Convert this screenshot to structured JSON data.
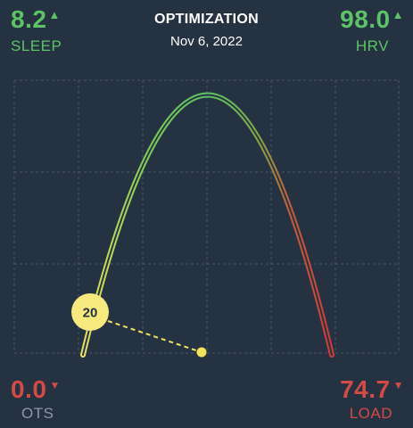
{
  "header": {
    "title": "OPTIMIZATION",
    "date": "Nov 6, 2022"
  },
  "metrics": {
    "sleep": {
      "value": "8.2",
      "label": "SLEEP",
      "trend": "▲",
      "color": "#5cc466"
    },
    "hrv": {
      "value": "98.0",
      "label": "HRV",
      "trend": "▲",
      "color": "#5cc466"
    },
    "ots": {
      "value": "0.0",
      "label": "OTS",
      "trend": "▼",
      "color": "#d44a47"
    },
    "load": {
      "value": "74.7",
      "label": "LOAD",
      "trend": "▼",
      "color": "#d44a47"
    }
  },
  "chart_data": {
    "type": "line",
    "grid": true,
    "marker": {
      "label": "20"
    },
    "colors": {
      "green": "#5cc466",
      "yellow": "#f2e35c",
      "red": "#d63a3a"
    }
  }
}
